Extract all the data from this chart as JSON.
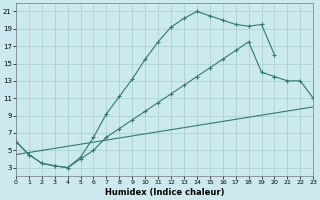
{
  "xlabel": "Humidex (Indice chaleur)",
  "bg_color": "#cce9ef",
  "grid_color": "#aaccd4",
  "line_color": "#2e7b6e",
  "xlim": [
    0,
    23
  ],
  "ylim": [
    2,
    22
  ],
  "xticks": [
    0,
    1,
    2,
    3,
    4,
    5,
    6,
    7,
    8,
    9,
    10,
    11,
    12,
    13,
    14,
    15,
    16,
    17,
    18,
    19,
    20,
    21,
    22,
    23
  ],
  "yticks": [
    3,
    5,
    7,
    9,
    11,
    13,
    15,
    17,
    19,
    21
  ],
  "curve1_x": [
    0,
    1,
    2,
    3,
    4,
    5,
    6,
    7,
    8,
    9,
    10,
    11,
    12,
    13,
    14,
    15,
    16,
    17,
    18,
    19,
    20
  ],
  "curve1_y": [
    6.0,
    4.5,
    3.5,
    3.2,
    3.0,
    4.2,
    6.5,
    9.2,
    11.2,
    13.2,
    15.5,
    17.5,
    19.2,
    20.2,
    21.0,
    20.5,
    20.0,
    19.5,
    19.3,
    19.5,
    16.0
  ],
  "curve2_x": [
    0,
    1,
    2,
    3,
    4,
    5,
    6,
    7,
    8,
    9,
    10,
    11,
    12,
    13,
    14,
    15,
    16,
    17,
    18,
    19,
    20,
    21,
    22,
    23
  ],
  "curve2_y": [
    6.0,
    4.5,
    3.5,
    3.2,
    3.0,
    4.0,
    5.0,
    6.5,
    7.5,
    8.5,
    9.5,
    10.5,
    11.5,
    12.5,
    13.5,
    14.5,
    15.5,
    16.5,
    17.5,
    14.0,
    13.5,
    13.0,
    13.0,
    11.0
  ],
  "curve3_x": [
    0,
    23
  ],
  "curve3_y": [
    4.5,
    10.0
  ]
}
